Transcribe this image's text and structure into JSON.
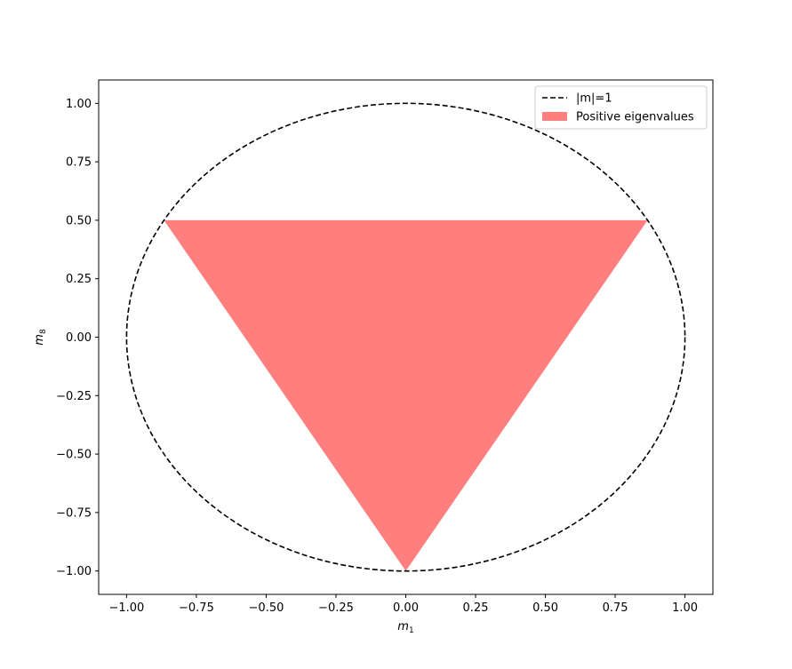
{
  "chart_data": {
    "type": "area",
    "title": "",
    "xlabel": "m_1",
    "ylabel": "m_8",
    "xlim": [
      -1.1,
      1.1
    ],
    "ylim": [
      -1.1,
      1.1
    ],
    "xticks": [
      -1.0,
      -0.75,
      -0.5,
      -0.25,
      0.0,
      0.25,
      0.5,
      0.75,
      1.0
    ],
    "xtick_labels": [
      "−1.00",
      "−0.75",
      "−0.50",
      "−0.25",
      "0.00",
      "0.25",
      "0.50",
      "0.75",
      "1.00"
    ],
    "yticks": [
      1.0,
      0.75,
      0.5,
      0.25,
      0.0,
      -0.25,
      -0.5,
      -0.75,
      -1.0
    ],
    "ytick_labels": [
      "1.00",
      "0.75",
      "0.50",
      "0.25",
      "0.00",
      "−0.25",
      "−0.50",
      "−0.75",
      "−1.00"
    ],
    "grid": false,
    "legend_position": "top-right",
    "series": [
      {
        "name": "|m|=1",
        "kind": "line",
        "style": "dashed",
        "color": "#000000",
        "shape": "circle",
        "center": [
          0,
          0
        ],
        "radius": 1.0
      },
      {
        "name": "Positive eigenvalues",
        "kind": "fill",
        "color": "#ff7f7f",
        "points": [
          [
            -0.866,
            0.5
          ],
          [
            0.866,
            0.5
          ],
          [
            0.0,
            -1.0
          ]
        ]
      }
    ]
  }
}
